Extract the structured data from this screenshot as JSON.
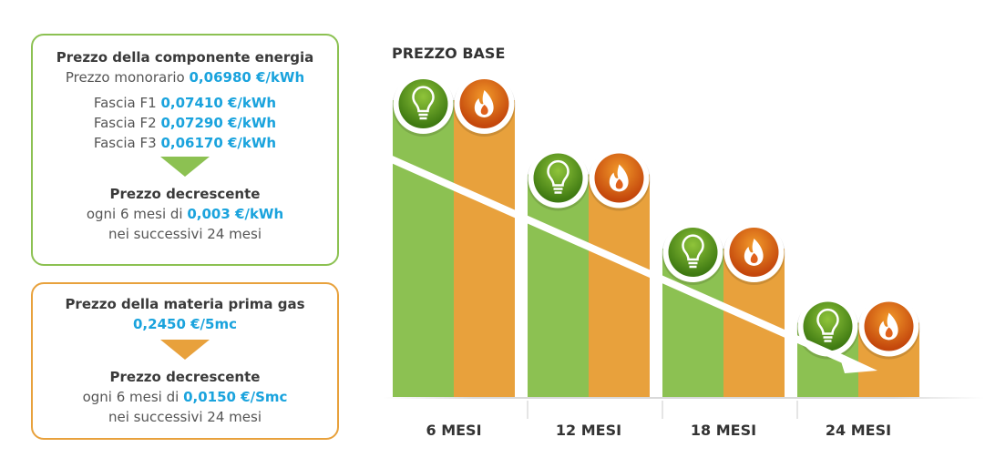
{
  "energy_box": {
    "title": "Prezzo della componente energia",
    "mono_label": "Prezzo monorario",
    "mono_value": "0,06980 €/kWh",
    "fasce": [
      {
        "label": "Fascia F1",
        "value": "0,07410 €/kWh"
      },
      {
        "label": "Fascia F2",
        "value": "0,07290 €/kWh"
      },
      {
        "label": "Fascia F3",
        "value": "0,06170 €/kWh"
      }
    ],
    "decr_title": "Prezzo decrescente",
    "decr_prefix": "ogni 6 mesi di",
    "decr_value": "0,003 €/kWh",
    "decr_suffix": "nei successivi 24 mesi"
  },
  "gas_box": {
    "title": "Prezzo della materia prima gas",
    "value": "0,2450 €/5mc",
    "decr_title": "Prezzo decrescente",
    "decr_prefix": "ogni 6 mesi di",
    "decr_value": "0,0150 €/Smc",
    "decr_suffix": "nei successivi 24 mesi"
  },
  "chart_data": {
    "type": "bar",
    "title": "PREZZO BASE",
    "categories": [
      "6 MESI",
      "12 MESI",
      "18 MESI",
      "24 MESI"
    ],
    "series": [
      {
        "icon": "lightbulb-icon",
        "color": "#8cc152",
        "values": [
          4,
          3,
          2,
          1
        ]
      },
      {
        "icon": "flame-icon",
        "color": "#e8a13c",
        "values": [
          4,
          3,
          2,
          1
        ]
      }
    ],
    "trend": "decreasing"
  }
}
